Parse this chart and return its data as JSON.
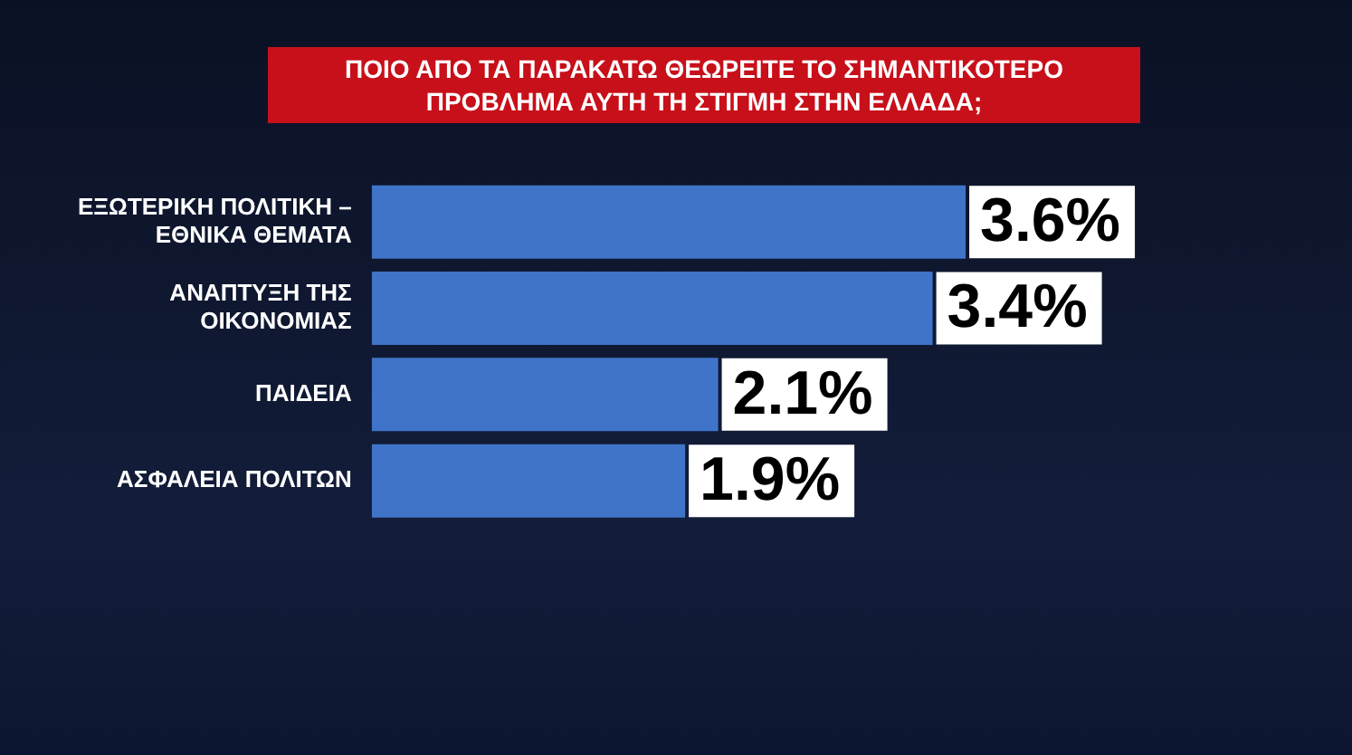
{
  "chart_data": {
    "type": "bar",
    "orientation": "horizontal",
    "title": "ΠΟΙΟ ΑΠΟ ΤΑ ΠΑΡΑΚΑΤΩ ΘΕΩΡΕΙΤΕ ΤΟ ΣΗΜΑΝΤΙΚΟΤΕΡΟ ΠΡΟΒΛΗΜΑ ΑΥΤΗ ΤΗ ΣΤΙΓΜΗ ΣΤΗΝ ΕΛΛΑΔΑ;",
    "categories": [
      "ΕΞΩΤΕΡΙΚΗ ΠΟΛΙΤΙΚΗ – ΕΘΝΙΚΑ ΘΕΜΑΤΑ",
      "ΑΝΑΠΤΥΞΗ ΤΗΣ ΟΙΚΟΝΟΜΙΑΣ",
      "ΠΑΙΔΕΙΑ",
      "ΑΣΦΑΛΕΙΑ ΠΟΛΙΤΩΝ"
    ],
    "values": [
      3.6,
      3.4,
      2.1,
      1.9
    ],
    "value_labels": [
      "3.6%",
      "3.4%",
      "2.1%",
      "1.9%"
    ],
    "color": "#3f74c9",
    "grid": false,
    "legend": false
  }
}
